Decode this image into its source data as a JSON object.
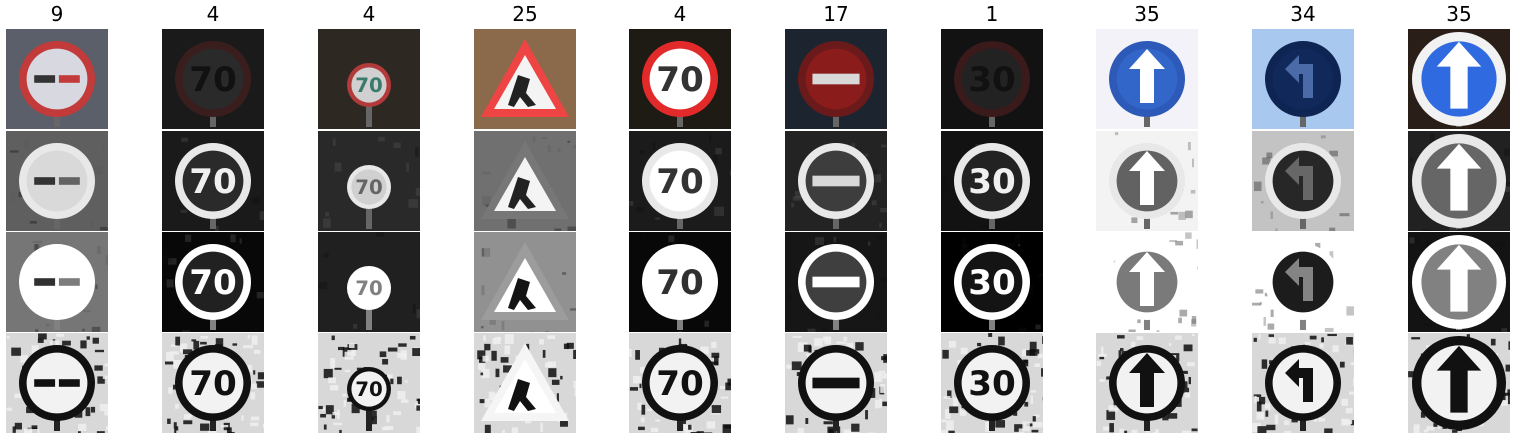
{
  "columns": [
    {
      "label": "9",
      "sign": "no-overtaking",
      "text": "",
      "bg": "#5a5f6a",
      "border": "#c23a3a",
      "fill": "#d8d8e0",
      "glyph": "#333333",
      "rows": [
        "color",
        "gray",
        "equalized",
        "adaptive"
      ]
    },
    {
      "label": "4",
      "sign": "speed-limit",
      "text": "70",
      "bg": "#1a1a1a",
      "border": "#3a1e1e",
      "fill": "#2a2a2a",
      "glyph": "#111111",
      "rows": [
        "color",
        "gray",
        "equalized",
        "adaptive"
      ]
    },
    {
      "label": "4",
      "sign": "speed-limit-small",
      "text": "70",
      "bg": "#2e2823",
      "border": "#b23a3a",
      "fill": "#d0d0d0",
      "glyph": "#3a7a6a",
      "rows": [
        "color",
        "gray",
        "equalized",
        "adaptive"
      ]
    },
    {
      "label": "25",
      "sign": "road-work",
      "text": "",
      "bg": "#8a6a4a",
      "border": "#ee4444",
      "fill": "#f4f4f4",
      "glyph": "#222222",
      "rows": [
        "color",
        "gray",
        "equalized",
        "adaptive"
      ]
    },
    {
      "label": "4",
      "sign": "speed-limit",
      "text": "70",
      "bg": "#1e1a14",
      "border": "#e32a2a",
      "fill": "#ffffff",
      "glyph": "#333333",
      "rows": [
        "color",
        "gray",
        "equalized",
        "adaptive"
      ]
    },
    {
      "label": "17",
      "sign": "no-entry",
      "text": "",
      "bg": "#1c2430",
      "border": "#6a1a1a",
      "fill": "#8a1c1c",
      "glyph": "#d8d8d8",
      "rows": [
        "color",
        "gray",
        "equalized",
        "adaptive"
      ]
    },
    {
      "label": "1",
      "sign": "speed-limit",
      "text": "30",
      "bg": "#121212",
      "border": "#3a1a1a",
      "fill": "#222222",
      "glyph": "#111111",
      "rows": [
        "color",
        "gray",
        "equalized",
        "adaptive"
      ]
    },
    {
      "label": "35",
      "sign": "ahead-only",
      "text": "",
      "bg": "#f2f2f8",
      "border": "#2d5ab8",
      "fill": "#3266c8",
      "glyph": "#ffffff",
      "rows": [
        "color",
        "gray",
        "equalized",
        "adaptive"
      ]
    },
    {
      "label": "34",
      "sign": "turn-left",
      "text": "",
      "bg": "#a8c8f0",
      "border": "#0e2452",
      "fill": "#10285a",
      "glyph": "#4a6aa8",
      "rows": [
        "color",
        "gray",
        "equalized",
        "adaptive"
      ]
    },
    {
      "label": "35",
      "sign": "ahead-only-large",
      "text": "",
      "bg": "#2a1e18",
      "border": "#f2f2f2",
      "fill": "#2f6ae0",
      "glyph": "#ffffff",
      "rows": [
        "color",
        "gray",
        "equalized",
        "adaptive"
      ]
    }
  ]
}
